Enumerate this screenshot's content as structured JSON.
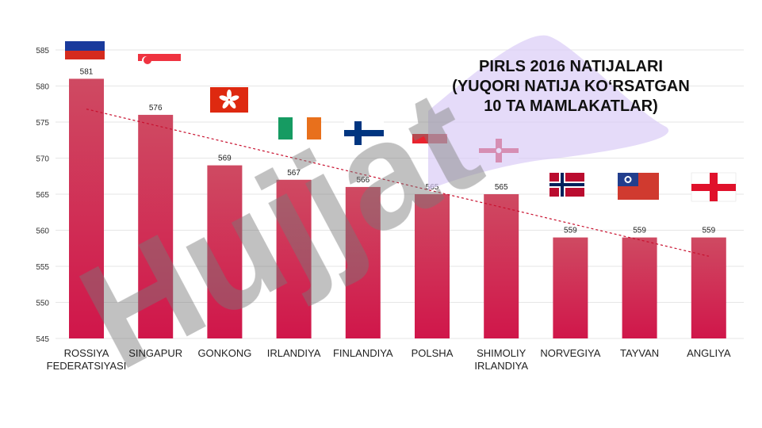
{
  "chart_data": {
    "type": "bar",
    "title": [
      "PIRLS 2016 NATIJALARI",
      "(YUQORI NATIJA KO‘RSATGAN",
      "10 TA MAMLAKATLAR)"
    ],
    "categories": [
      [
        "ROSSIYA",
        "FEDERATSIYASI"
      ],
      [
        "SINGAPUR"
      ],
      [
        "GONKONG"
      ],
      [
        "IRLANDIYA"
      ],
      [
        "FINLANDIYA"
      ],
      [
        "POLSHA"
      ],
      [
        "SHIMOLIY",
        "IRLANDIYA"
      ],
      [
        "NORVEGIYA"
      ],
      [
        "TAYVAN"
      ],
      [
        "ANGLIYA"
      ]
    ],
    "values": [
      581,
      576,
      569,
      567,
      566,
      565,
      565,
      559,
      559,
      559
    ],
    "ylim": [
      545,
      585
    ],
    "yticks": [
      "545",
      "550",
      "555",
      "560",
      "565",
      "570",
      "575",
      "580",
      "585"
    ],
    "grid": true,
    "trendline": true,
    "colors": {
      "bar_top": "#cf4a62",
      "bar_bottom": "#d0164a",
      "trend": "#c8102e",
      "grid": "#e6e6e6"
    },
    "flags": [
      "russia-flag",
      "singapore-flag",
      "hong-kong-flag",
      "ireland-flag",
      "finland-flag",
      "poland-flag",
      "northern-ireland-flag",
      "norway-flag",
      "taiwan-flag",
      "england-flag"
    ]
  },
  "watermark_text": "Hujjat"
}
